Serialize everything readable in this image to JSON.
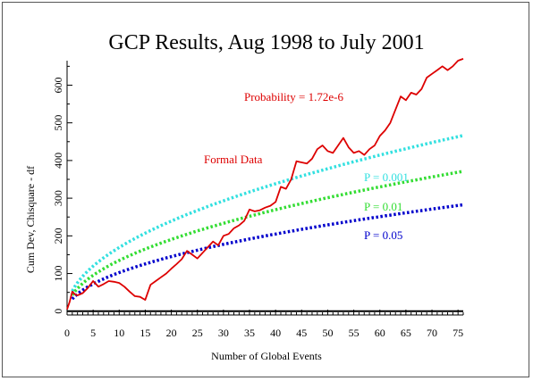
{
  "chart_data": {
    "type": "line",
    "title": "GCP Results, Aug 1998 to July 2001",
    "xlabel": "Number of Global Events",
    "ylabel": "Cum Dev, Chisquare - df",
    "xlim": [
      0,
      76
    ],
    "ylim": [
      -10,
      665
    ],
    "xticks": [
      0,
      5,
      10,
      15,
      20,
      25,
      30,
      35,
      40,
      45,
      50,
      55,
      60,
      65,
      70,
      75
    ],
    "yticks": [
      0,
      100,
      200,
      300,
      400,
      500,
      600
    ],
    "grid": false,
    "baseline": 0,
    "colors": {
      "data": "#dd0000",
      "p001": "#33e0e0",
      "p01": "#33dd33",
      "p05": "#0000cc",
      "axis": "#000000"
    },
    "annotations": {
      "probability": "Probability = 1.72e-6",
      "formal_data": "Formal Data",
      "p001": "P = 0.001",
      "p01": "P = 0.01",
      "p05": "P = 0.05"
    },
    "series": [
      {
        "name": "Formal Data",
        "color": "#dd0000",
        "x": [
          0,
          0.5,
          1,
          1.5,
          2,
          3,
          4,
          5,
          6,
          7,
          8,
          9,
          10,
          11,
          12,
          13,
          14,
          15,
          16,
          17,
          18,
          19,
          20,
          21,
          22,
          23,
          24,
          25,
          26,
          27,
          28,
          29,
          30,
          31,
          32,
          33,
          34,
          35,
          36,
          37,
          38,
          39,
          40,
          41,
          42,
          43,
          44,
          45,
          46,
          47,
          48,
          49,
          50,
          51,
          52,
          53,
          54,
          55,
          56,
          57,
          58,
          59,
          60,
          61,
          62,
          63,
          64,
          65,
          66,
          67,
          68,
          69,
          70,
          71,
          72,
          73,
          74,
          75,
          76
        ],
        "y": [
          5,
          25,
          52,
          45,
          42,
          48,
          62,
          80,
          65,
          72,
          80,
          78,
          75,
          65,
          52,
          40,
          38,
          30,
          70,
          80,
          90,
          100,
          113,
          125,
          138,
          160,
          150,
          140,
          155,
          170,
          185,
          175,
          200,
          205,
          220,
          228,
          240,
          270,
          265,
          268,
          275,
          280,
          290,
          330,
          325,
          350,
          398,
          395,
          392,
          405,
          430,
          440,
          425,
          420,
          440,
          460,
          435,
          420,
          425,
          415,
          430,
          440,
          465,
          480,
          500,
          535,
          570,
          560,
          580,
          575,
          590,
          620,
          630,
          640,
          650,
          640,
          650,
          665,
          670
        ]
      },
      {
        "name": "P = 0.001",
        "color": "#33e0e0",
        "dotted": true,
        "coef": 53.5,
        "exponent": 0.5,
        "x_start": 1
      },
      {
        "name": "P = 0.01",
        "color": "#33dd33",
        "dotted": true,
        "coef": 42.6,
        "exponent": 0.5,
        "x_start": 1
      },
      {
        "name": "P = 0.05",
        "color": "#0000cc",
        "dotted": true,
        "coef": 32.4,
        "exponent": 0.5,
        "x_start": 1
      }
    ]
  }
}
